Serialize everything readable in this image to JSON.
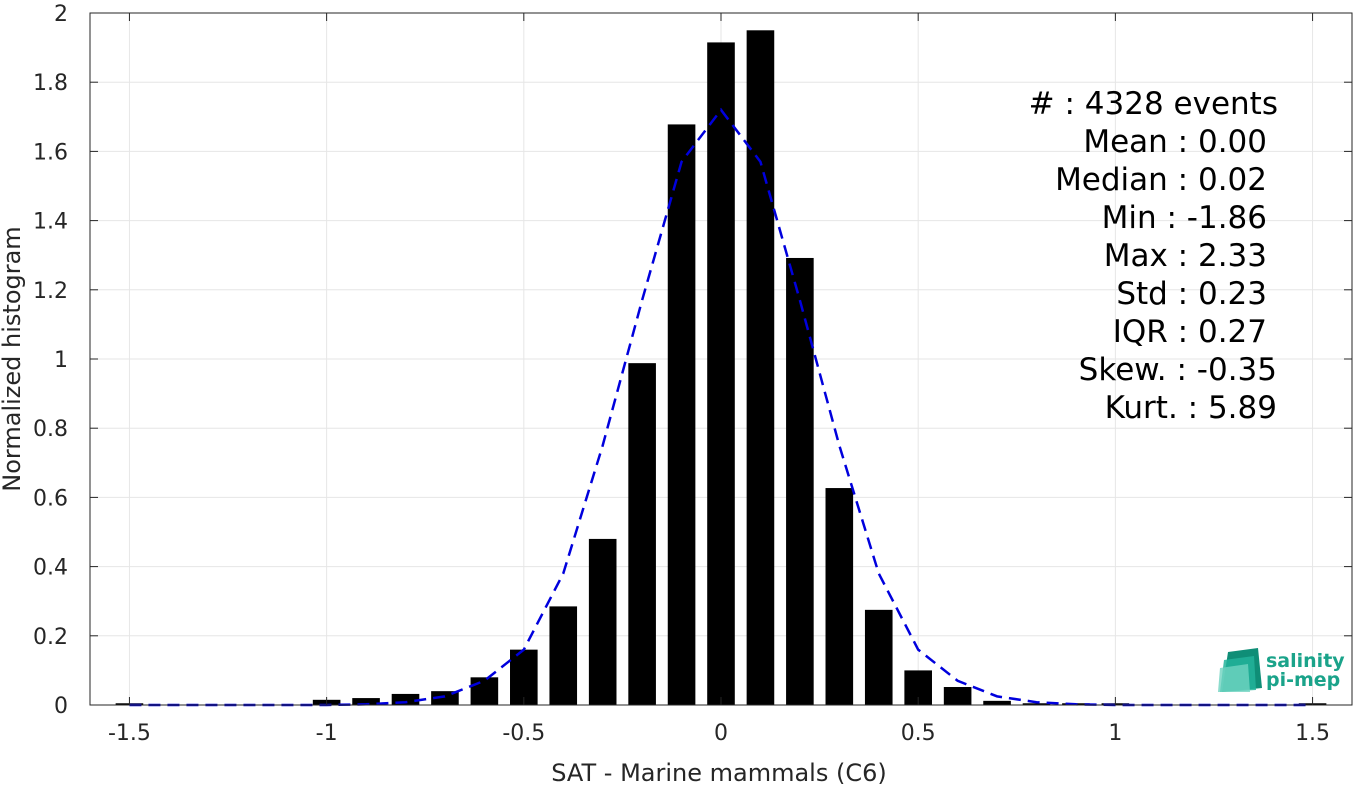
{
  "chart_data": {
    "type": "bar",
    "xlabel": "SAT - Marine mammals (C6)",
    "ylabel": "Normalized histogram",
    "xlim": [
      -1.6,
      1.6
    ],
    "ylim": [
      0,
      2
    ],
    "x_ticks": [
      -1.5,
      -1,
      -0.5,
      0,
      0.5,
      1,
      1.5
    ],
    "x_tick_labels": [
      "-1.5",
      "-1",
      "-0.5",
      "0",
      "0.5",
      "1",
      "1.5"
    ],
    "y_ticks": [
      0,
      0.2,
      0.4,
      0.6,
      0.8,
      1,
      1.2,
      1.4,
      1.6,
      1.8,
      2
    ],
    "y_tick_labels": [
      "0",
      "0.2",
      "0.4",
      "0.6",
      "0.8",
      "1",
      "1.2",
      "1.4",
      "1.6",
      "1.8",
      "2"
    ],
    "grid": true,
    "bar_color": "#000000",
    "bars": {
      "x": [
        -1.5,
        -1.4,
        -1.3,
        -1.2,
        -1.1,
        -1.0,
        -0.9,
        -0.8,
        -0.7,
        -0.6,
        -0.5,
        -0.4,
        -0.3,
        -0.2,
        -0.1,
        0.0,
        0.1,
        0.2,
        0.3,
        0.4,
        0.5,
        0.6,
        0.7,
        0.8,
        0.9,
        1.0,
        1.1,
        1.2,
        1.3,
        1.4,
        1.5
      ],
      "values": [
        0.005,
        0,
        0,
        0,
        0,
        0.015,
        0.02,
        0.032,
        0.04,
        0.08,
        0.16,
        0.285,
        0.48,
        0.988,
        1.678,
        1.915,
        1.95,
        1.292,
        0.627,
        0.275,
        0.1,
        0.052,
        0.012,
        0.005,
        0.005,
        0.005,
        0,
        0,
        0,
        0,
        0.005
      ]
    },
    "fit_curve": {
      "name": "Gaussian fit",
      "color": "#0000dd",
      "style": "dashed",
      "x": [
        -1.5,
        -1.4,
        -1.3,
        -1.2,
        -1.1,
        -1.0,
        -0.9,
        -0.8,
        -0.7,
        -0.6,
        -0.5,
        -0.4,
        -0.3,
        -0.2,
        -0.1,
        0.0,
        0.1,
        0.2,
        0.3,
        0.4,
        0.5,
        0.6,
        0.7,
        0.8,
        0.9,
        1.0,
        1.1,
        1.2,
        1.3,
        1.4,
        1.5
      ],
      "y": [
        0,
        0,
        0,
        0,
        0,
        0,
        0.002,
        0.008,
        0.025,
        0.07,
        0.16,
        0.38,
        0.75,
        1.17,
        1.57,
        1.72,
        1.57,
        1.17,
        0.75,
        0.38,
        0.16,
        0.07,
        0.025,
        0.008,
        0.002,
        0,
        0,
        0,
        0,
        0,
        0
      ]
    },
    "annotations": [
      "#  : 4328 events",
      "Mean : 0.00",
      "Median : 0.02",
      "Min : -1.86",
      "Max : 2.33",
      "Std : 0.23",
      "IQR : 0.27",
      "Skew. : -0.35",
      "Kurt. : 5.89"
    ]
  },
  "logo": {
    "line1": "salinity",
    "line2": "pi-mep",
    "color": "#1aa38a"
  }
}
